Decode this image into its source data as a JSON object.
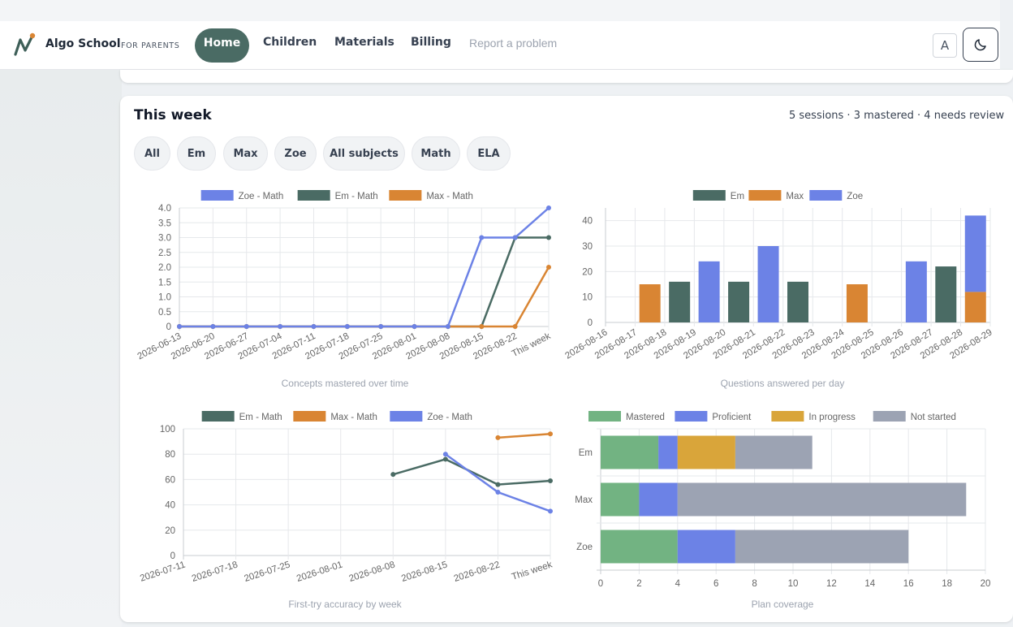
{
  "nav": {
    "brand": "Algo School",
    "brand_sub": "FOR PARENTS",
    "items": [
      {
        "label": "Home",
        "active": true
      },
      {
        "label": "Children"
      },
      {
        "label": "Materials"
      },
      {
        "label": "Billing"
      }
    ],
    "report": "Report a problem",
    "lang_button": "A",
    "theme_icon": "moon-icon"
  },
  "colors": {
    "brand": "#4a6b64",
    "em": "#4a6b64",
    "max": "#d98533",
    "zoe": "#6c82e6",
    "mastered": "#72b382",
    "proficient": "#6c82e6",
    "in_progress": "#d9a53a",
    "not_started": "#9ca3b3"
  },
  "card": {
    "title": "This week",
    "summary": "5 sessions · 3 mastered · 4 needs review",
    "filters": [
      "All",
      "Em",
      "Max",
      "Zoe",
      "All subjects",
      "Math",
      "ELA"
    ]
  },
  "chart_data": [
    {
      "type": "line",
      "title": "Concepts mastered over time",
      "x": [
        "2026-06-13",
        "2026-06-20",
        "2026-06-27",
        "2026-07-04",
        "2026-07-11",
        "2026-07-18",
        "2026-07-25",
        "2026-08-01",
        "2026-08-08",
        "2026-08-15",
        "2026-08-22",
        "This week"
      ],
      "ylim": [
        0,
        4
      ],
      "yticks": [
        "0",
        "0.5",
        "1.0",
        "1.5",
        "2.0",
        "2.5",
        "3.0",
        "3.5",
        "4.0"
      ],
      "legend": "top",
      "series": [
        {
          "name": "Em - Math",
          "color": "#4a6b64",
          "values": [
            0,
            0,
            0,
            0,
            0,
            0,
            0,
            0,
            0,
            0,
            3,
            3
          ]
        },
        {
          "name": "Max - Math",
          "color": "#d98533",
          "values": [
            0,
            0,
            0,
            0,
            0,
            0,
            0,
            0,
            0,
            0,
            0,
            2
          ]
        },
        {
          "name": "Zoe - Math",
          "color": "#6c82e6",
          "values": [
            0,
            0,
            0,
            0,
            0,
            0,
            0,
            0,
            0,
            3,
            3,
            4
          ]
        }
      ],
      "legend_order": [
        "Zoe - Math",
        "Em - Math",
        "Max - Math"
      ]
    },
    {
      "type": "bar",
      "title": "Questions answered per day",
      "categories": [
        "2026-08-16",
        "2026-08-17",
        "2026-08-18",
        "2026-08-19",
        "2026-08-20",
        "2026-08-21",
        "2026-08-22",
        "2026-08-23",
        "2026-08-24",
        "2026-08-25",
        "2026-08-26",
        "2026-08-27",
        "2026-08-28",
        "2026-08-29"
      ],
      "ylim": [
        0,
        45
      ],
      "yticks": [
        "0",
        "10",
        "20",
        "30",
        "40"
      ],
      "legend": "top",
      "stacked": true,
      "series": [
        {
          "name": "Em",
          "color": "#4a6b64",
          "values": [
            0,
            0,
            16,
            0,
            16,
            0,
            16,
            0,
            0,
            0,
            0,
            22,
            0,
            0
          ]
        },
        {
          "name": "Max",
          "color": "#d98533",
          "values": [
            0,
            15,
            0,
            0,
            0,
            0,
            0,
            0,
            15,
            0,
            0,
            0,
            12,
            0
          ]
        },
        {
          "name": "Zoe",
          "color": "#6c82e6",
          "values": [
            0,
            0,
            0,
            24,
            0,
            30,
            0,
            0,
            0,
            0,
            24,
            0,
            30,
            0
          ]
        }
      ]
    },
    {
      "type": "line",
      "title": "First-try accuracy by week",
      "x": [
        "2026-07-11",
        "2026-07-18",
        "2026-07-25",
        "2026-08-01",
        "2026-08-08",
        "2026-08-15",
        "2026-08-22",
        "This week"
      ],
      "ylim": [
        0,
        100
      ],
      "yticks": [
        "0",
        "20",
        "40",
        "60",
        "80",
        "100"
      ],
      "legend": "top",
      "series": [
        {
          "name": "Em - Math",
          "color": "#4a6b64",
          "values": [
            null,
            null,
            null,
            null,
            64,
            76,
            56,
            59
          ]
        },
        {
          "name": "Max - Math",
          "color": "#d98533",
          "values": [
            null,
            null,
            null,
            null,
            null,
            null,
            93,
            96
          ]
        },
        {
          "name": "Zoe - Math",
          "color": "#6c82e6",
          "values": [
            null,
            null,
            null,
            null,
            null,
            80,
            50,
            35
          ]
        }
      ]
    },
    {
      "type": "bar",
      "orientation": "horizontal",
      "title": "Plan coverage",
      "categories": [
        "Em",
        "Max",
        "Zoe"
      ],
      "xlim": [
        0,
        20
      ],
      "xticks": [
        "0",
        "2",
        "4",
        "6",
        "8",
        "10",
        "12",
        "14",
        "16",
        "18",
        "20"
      ],
      "legend": "top",
      "stacked": true,
      "series": [
        {
          "name": "Mastered",
          "color": "#72b382",
          "values": [
            3,
            2,
            4
          ]
        },
        {
          "name": "Proficient",
          "color": "#6c82e6",
          "values": [
            1,
            2,
            3
          ]
        },
        {
          "name": "In progress",
          "color": "#d9a53a",
          "values": [
            3,
            0,
            0
          ]
        },
        {
          "name": "Not started",
          "color": "#9ca3b3",
          "values": [
            4,
            15,
            9
          ]
        }
      ]
    }
  ]
}
